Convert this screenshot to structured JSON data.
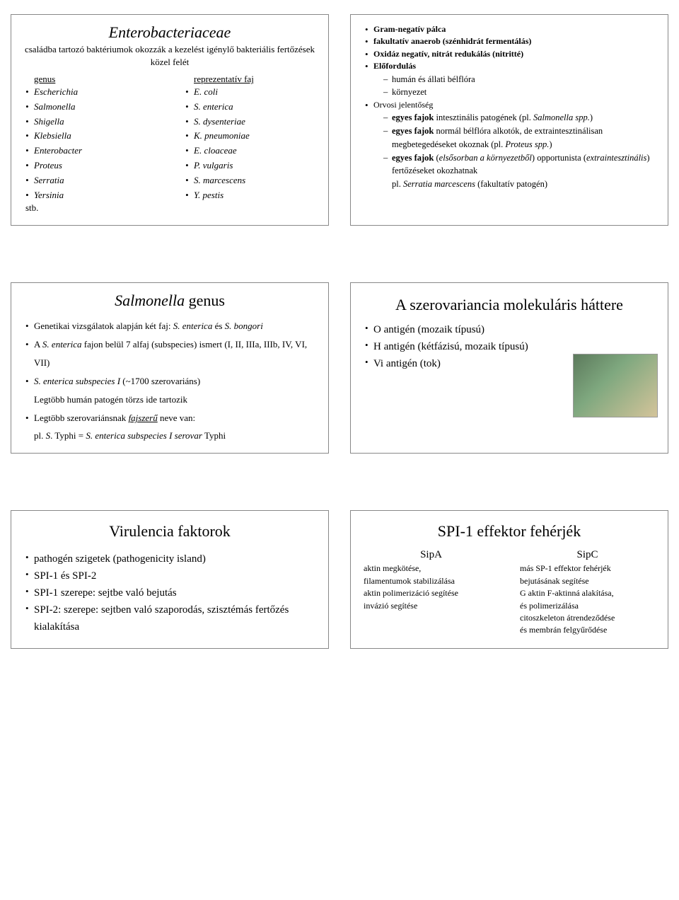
{
  "panel1": {
    "title": "Enterobacteriaceae",
    "subtitle": "családba tartozó baktériumok okozzák a kezelést igénylő bakteriális fertőzések közel felét",
    "col1_head": "genus",
    "col2_head": "reprezentatív faj",
    "genera": [
      "Escherichia",
      "Salmonella",
      "Shigella",
      "Klebsiella",
      "Enterobacter",
      "Proteus",
      "Serratia",
      "Yersinia"
    ],
    "stb": "stb.",
    "species": [
      "E. coli",
      "S. enterica",
      "S. dysenteriae",
      "K. pneumoniae",
      "E. cloaceae",
      "P. vulgaris",
      "S. marcescens",
      "Y. pestis"
    ]
  },
  "panel2": {
    "items": [
      {
        "html": "<span class='bold'>Gram-negatív pálca</span>"
      },
      {
        "html": "<span class='bold'>fakultatív anaerob (szénhidrát fermentálás)</span>"
      },
      {
        "html": "<span class='bold'>Oxidáz negatív, nitrát redukálás (nitritté)</span>"
      },
      {
        "html": "<span class='bold'>Előfordulás</span>",
        "sub": [
          "humán és állati bélflóra",
          "környezet"
        ]
      },
      {
        "html": "Orvosi jelentőség",
        "sub": [
          "<span class='bold'>egyes fajok</span> intesztinális patogének (pl. <span class='italic'>Salmonella spp.</span>)",
          "<span class='bold'>egyes fajok</span> normál bélflóra alkotók, de extraintesztinálisan megbetegedéseket okoznak (pl. <span class='italic'>Proteus spp.</span>)",
          "<span class='bold'>egyes fajok</span> (<span class='italic'>elsősorban a környezetből</span>) opportunista (<span class='italic'>extraintesztinális</span>) fertőzéseket okozhatnak<br>pl. <span class='italic'>Serratia marcescens</span> (fakultatív patogén)"
        ]
      }
    ]
  },
  "panel3": {
    "title_pre": "Salmonella",
    "title_post": " genus",
    "items": [
      "Genetikai vizsgálatok alapján két faj: <span class='italic'>S. enterica</span> és <span class='italic'>S. bongori</span>",
      "A <span class='italic'>S. enterica</span> fajon belül 7 alfaj (subspecies) ismert (I, II, IIIa, IIIb, IV, VI, VII)",
      "<span class='italic'>S. enterica subspecies I</span> (~1700 szerovariáns)<br>Legtöbb humán patogén törzs ide tartozik",
      "Legtöbb szerovariánsnak <span class='italic underline'>fajszerű</span> neve van:"
    ],
    "footer": "pl. <span class='italic'>S</span>. Typhi = <span class='italic'>S. enterica subspecies I  serovar</span> Typhi"
  },
  "panel4": {
    "title": "A szerovariancia molekuláris háttere",
    "items": [
      "O antigén (mozaik típusú)",
      "H antigén (kétfázisú, mozaik típusú)",
      "Vi antigén (tok)"
    ]
  },
  "panel5": {
    "title": "Virulencia faktorok",
    "items": [
      "pathogén szigetek (pathogenicity island)",
      "SPI-1 és SPI-2",
      "SPI-1 szerepe: sejtbe való bejutás",
      "SPI-2: szerepe: sejtben való szaporodás, szisztémás fertőzés kialakítása"
    ]
  },
  "panel6": {
    "title": "SPI-1 effektor fehérjék",
    "sipA": {
      "head": "SipA",
      "lines": [
        "aktin megkötése,",
        "filamentumok stabilizálása",
        "aktin polimerizáció segítése",
        "invázió segítése"
      ]
    },
    "sipC": {
      "head": "SipC",
      "lines": [
        "más SP-1 effektor fehérjék",
        "bejutásának segítése",
        "G aktin F-aktinná alakítása,",
        "és polimerizálása",
        "citoszkeleton átrendeződése",
        "és membrán felgyűrődése"
      ]
    }
  }
}
